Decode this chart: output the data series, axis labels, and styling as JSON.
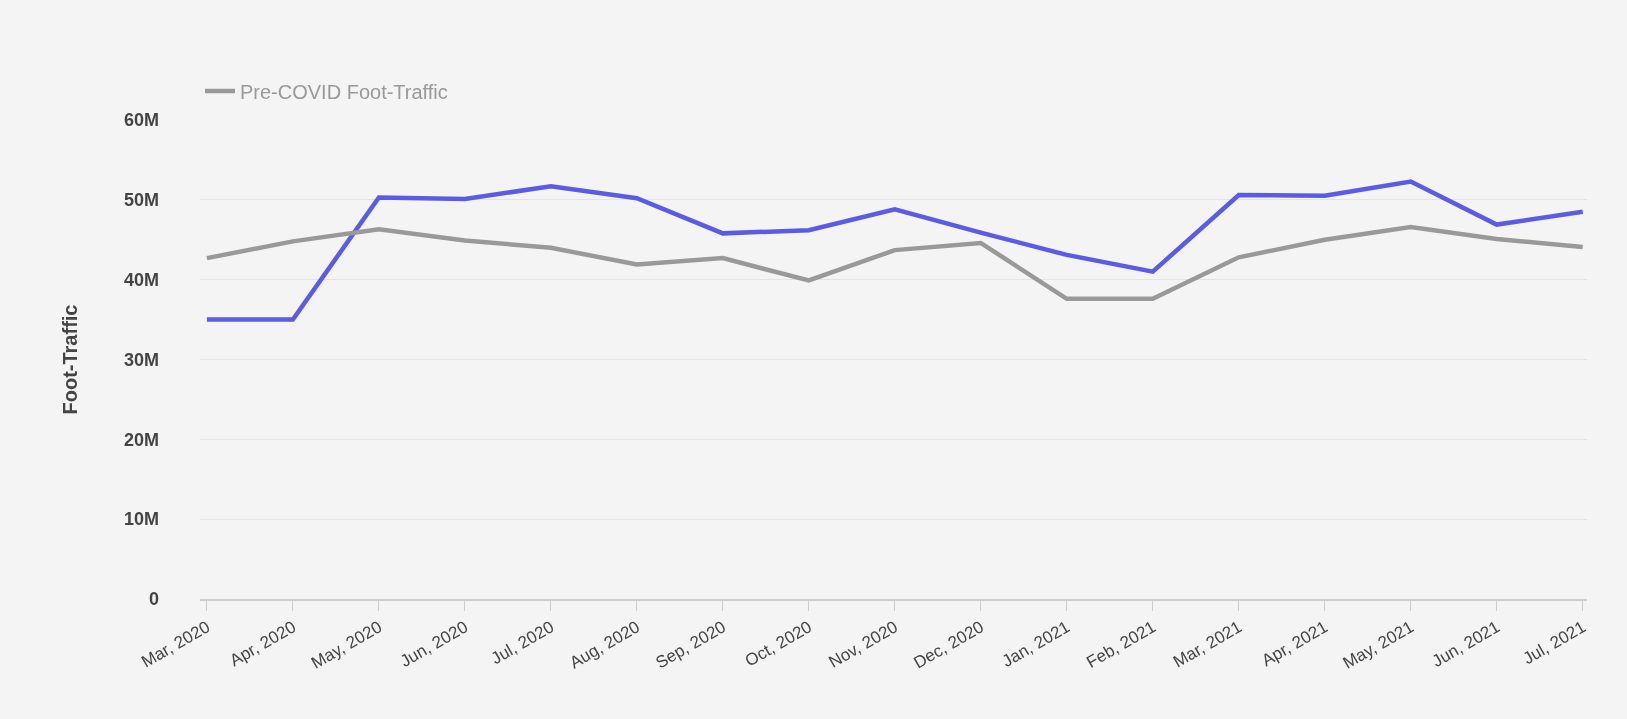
{
  "chart_data": {
    "type": "line",
    "ylabel": "Foot-Traffic",
    "categories": [
      "Mar, 2020",
      "Apr, 2020",
      "May, 2020",
      "Jun, 2020",
      "Jul, 2020",
      "Aug, 2020",
      "Sep, 2020",
      "Oct, 2020",
      "Nov, 2020",
      "Dec, 2020",
      "Jan, 2021",
      "Feb, 2021",
      "Mar, 2021",
      "Apr, 2021",
      "May, 2021",
      "Jun, 2021",
      "Jul, 2021"
    ],
    "series": [
      {
        "color": "#5b5be6",
        "values": [
          35.0,
          35.0,
          50.3,
          50.1,
          51.7,
          50.2,
          45.8,
          46.2,
          48.8,
          45.9,
          43.1,
          41.0,
          50.6,
          50.5,
          52.3,
          46.9,
          48.5
        ]
      },
      {
        "name": "Pre-COVID Foot-Traffic",
        "color": "#999999",
        "values": [
          42.7,
          44.8,
          46.3,
          44.9,
          44.0,
          41.9,
          42.7,
          39.9,
          43.7,
          44.6,
          37.6,
          37.6,
          42.8,
          45.0,
          46.6,
          45.1,
          44.1
        ]
      }
    ],
    "ylim": [
      0,
      60
    ],
    "yticks": [
      {
        "value": 0,
        "label": "0"
      },
      {
        "value": 10,
        "label": "10M"
      },
      {
        "value": 20,
        "label": "20M"
      },
      {
        "value": 30,
        "label": "30M"
      },
      {
        "value": 40,
        "label": "40M"
      },
      {
        "value": 50,
        "label": "50M"
      },
      {
        "value": 60,
        "label": "60M"
      }
    ],
    "grid": "y",
    "legend": "top left",
    "marker": "none",
    "line_style": "solid"
  }
}
